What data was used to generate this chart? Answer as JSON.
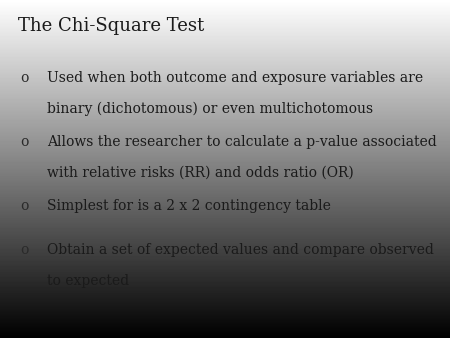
{
  "title": "The Chi-Square Test",
  "title_fontsize": 13,
  "title_color": "#1a1a1a",
  "bullet_symbol": "o",
  "bullet_color": "#2a2a2a",
  "bullet_fontsize": 10,
  "text_fontsize": 10,
  "text_color": "#1a1a1a",
  "font_family": "serif",
  "bullets": [
    {
      "line1": "Used when both outcome and exposure variables are",
      "line2": "binary (dichotomous) or even multichotomous"
    },
    {
      "line1": "Allows the researcher to calculate a p-value associated",
      "line2": "with relative risks (RR) and odds ratio (OR)"
    },
    {
      "line1": "Simplest for is a 2 x 2 contingency table",
      "line2": null
    },
    {
      "line1": "Obtain a set of expected values and compare observed",
      "line2": "to expected"
    }
  ]
}
